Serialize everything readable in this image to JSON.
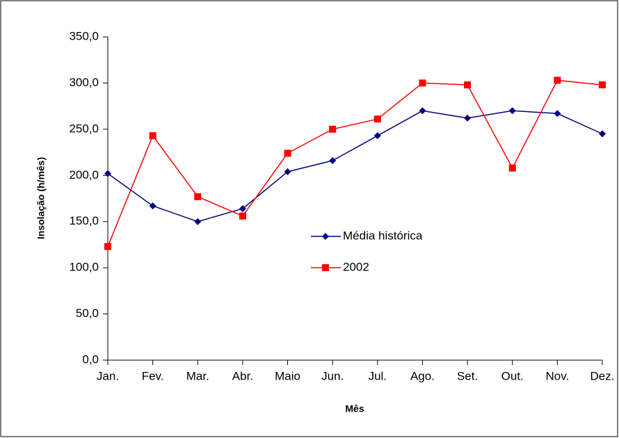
{
  "chart_data": {
    "type": "line",
    "x_label": "Mês",
    "y_label": "Insolação (h/mês)",
    "categories": [
      "Jan.",
      "Fev.",
      "Mar.",
      "Abr.",
      "Maio",
      "Jun.",
      "Jul.",
      "Ago.",
      "Set.",
      "Out.",
      "Nov.",
      "Dez."
    ],
    "series": [
      {
        "name": "Média histórica",
        "color": "#000080",
        "marker": "diamond",
        "values": [
          202,
          167,
          150,
          164,
          204,
          216,
          243,
          270,
          262,
          270,
          267,
          245
        ]
      },
      {
        "name": "2002",
        "color": "#ff0000",
        "marker": "square",
        "values": [
          123,
          243,
          177,
          156,
          224,
          250,
          261,
          300,
          298,
          208,
          303,
          298
        ]
      }
    ],
    "ylim": [
      0,
      350
    ],
    "yticks": [
      {
        "value": 0,
        "label": "0,0"
      },
      {
        "value": 50,
        "label": "50,0"
      },
      {
        "value": 100,
        "label": "100,0"
      },
      {
        "value": 150,
        "label": "150,0"
      },
      {
        "value": 200,
        "label": "200,0"
      },
      {
        "value": 250,
        "label": "250,0"
      },
      {
        "value": 300,
        "label": "300,0"
      },
      {
        "value": 350,
        "label": "350,0"
      }
    ],
    "grid": false
  }
}
